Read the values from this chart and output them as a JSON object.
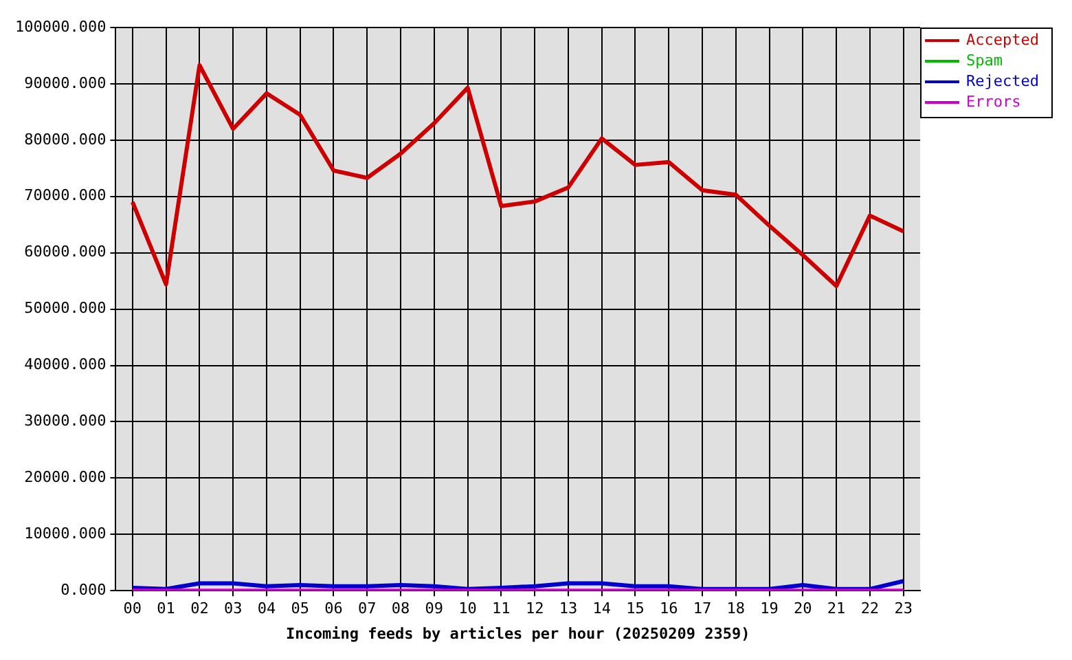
{
  "chart_data": {
    "type": "line",
    "xlabel": "Incoming feeds by articles per hour (20250209 2359)",
    "categories": [
      "00",
      "01",
      "02",
      "03",
      "04",
      "05",
      "06",
      "07",
      "08",
      "09",
      "10",
      "11",
      "12",
      "13",
      "14",
      "15",
      "16",
      "17",
      "18",
      "19",
      "20",
      "21",
      "22",
      "23"
    ],
    "series": [
      {
        "name": "Accepted",
        "color": "#cc0000",
        "values": [
          69000,
          54400,
          93300,
          82000,
          88300,
          84500,
          74600,
          73300,
          77600,
          83000,
          89300,
          68300,
          69100,
          71600,
          80300,
          75600,
          76100,
          71100,
          70300,
          64800,
          59600,
          54100,
          66600,
          63800
        ]
      },
      {
        "name": "Spam",
        "color": "#00bb00",
        "values": [
          null,
          null,
          null,
          null,
          null,
          null,
          null,
          null,
          null,
          null,
          null,
          null,
          null,
          null,
          null,
          null,
          null,
          null,
          null,
          null,
          null,
          null,
          null,
          null
        ]
      },
      {
        "name": "Rejected",
        "color": "#0000cc",
        "values": [
          500,
          300,
          1300,
          1300,
          800,
          1000,
          800,
          800,
          1000,
          800,
          300,
          500,
          800,
          1300,
          1300,
          800,
          800,
          300,
          300,
          300,
          1000,
          300,
          300,
          1700
        ]
      },
      {
        "name": "Errors",
        "color": "#cc00cc",
        "values": [
          0,
          0,
          0,
          0,
          0,
          0,
          0,
          0,
          0,
          0,
          0,
          0,
          0,
          0,
          0,
          0,
          0,
          0,
          0,
          0,
          0,
          0,
          0,
          0
        ]
      }
    ],
    "ylim": [
      0,
      100000
    ],
    "yticks": [
      {
        "value": 0,
        "label": "0.000"
      },
      {
        "value": 10000,
        "label": "10000.000"
      },
      {
        "value": 20000,
        "label": "20000.000"
      },
      {
        "value": 30000,
        "label": "30000.000"
      },
      {
        "value": 40000,
        "label": "40000.000"
      },
      {
        "value": 50000,
        "label": "50000.000"
      },
      {
        "value": 60000,
        "label": "60000.000"
      },
      {
        "value": 70000,
        "label": "70000.000"
      },
      {
        "value": 80000,
        "label": "80000.000"
      },
      {
        "value": 90000,
        "label": "90000.000"
      },
      {
        "value": 100000,
        "label": "100000.000"
      }
    ],
    "grid": true,
    "legend": "top right",
    "marker": "none",
    "line_style": "solid"
  }
}
